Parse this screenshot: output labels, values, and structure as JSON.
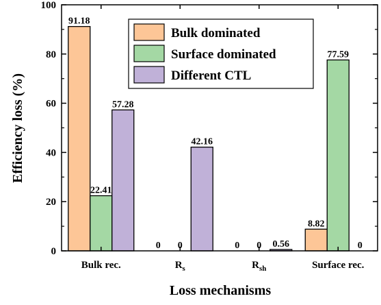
{
  "chart_data": {
    "type": "bar",
    "xlabel": "Loss mechanisms",
    "ylabel": "Efficiency loss (%)",
    "ylim": [
      0,
      100
    ],
    "yticks": [
      0,
      20,
      40,
      60,
      80,
      100
    ],
    "grid": false,
    "legend_position": "top-right",
    "categories": [
      {
        "base": "Bulk rec.",
        "sub": ""
      },
      {
        "base": "R",
        "sub": "s"
      },
      {
        "base": "R",
        "sub": "sh"
      },
      {
        "base": "Surface rec.",
        "sub": ""
      }
    ],
    "series": [
      {
        "name": "Bulk dominated",
        "color": "#FDC697",
        "values": [
          91.18,
          0,
          0,
          8.82
        ],
        "labels": [
          "91.18",
          "0",
          "0",
          "8.82"
        ]
      },
      {
        "name": "Surface dominated",
        "color": "#A4D8A4",
        "values": [
          22.41,
          0,
          0,
          77.59
        ],
        "labels": [
          "22.41",
          "0",
          "0",
          "77.59"
        ]
      },
      {
        "name": "Different CTL",
        "color": "#C0B1D8",
        "values": [
          57.28,
          42.16,
          0.56,
          0
        ],
        "labels": [
          "57.28",
          "42.16",
          "0.56",
          "0"
        ]
      }
    ]
  }
}
